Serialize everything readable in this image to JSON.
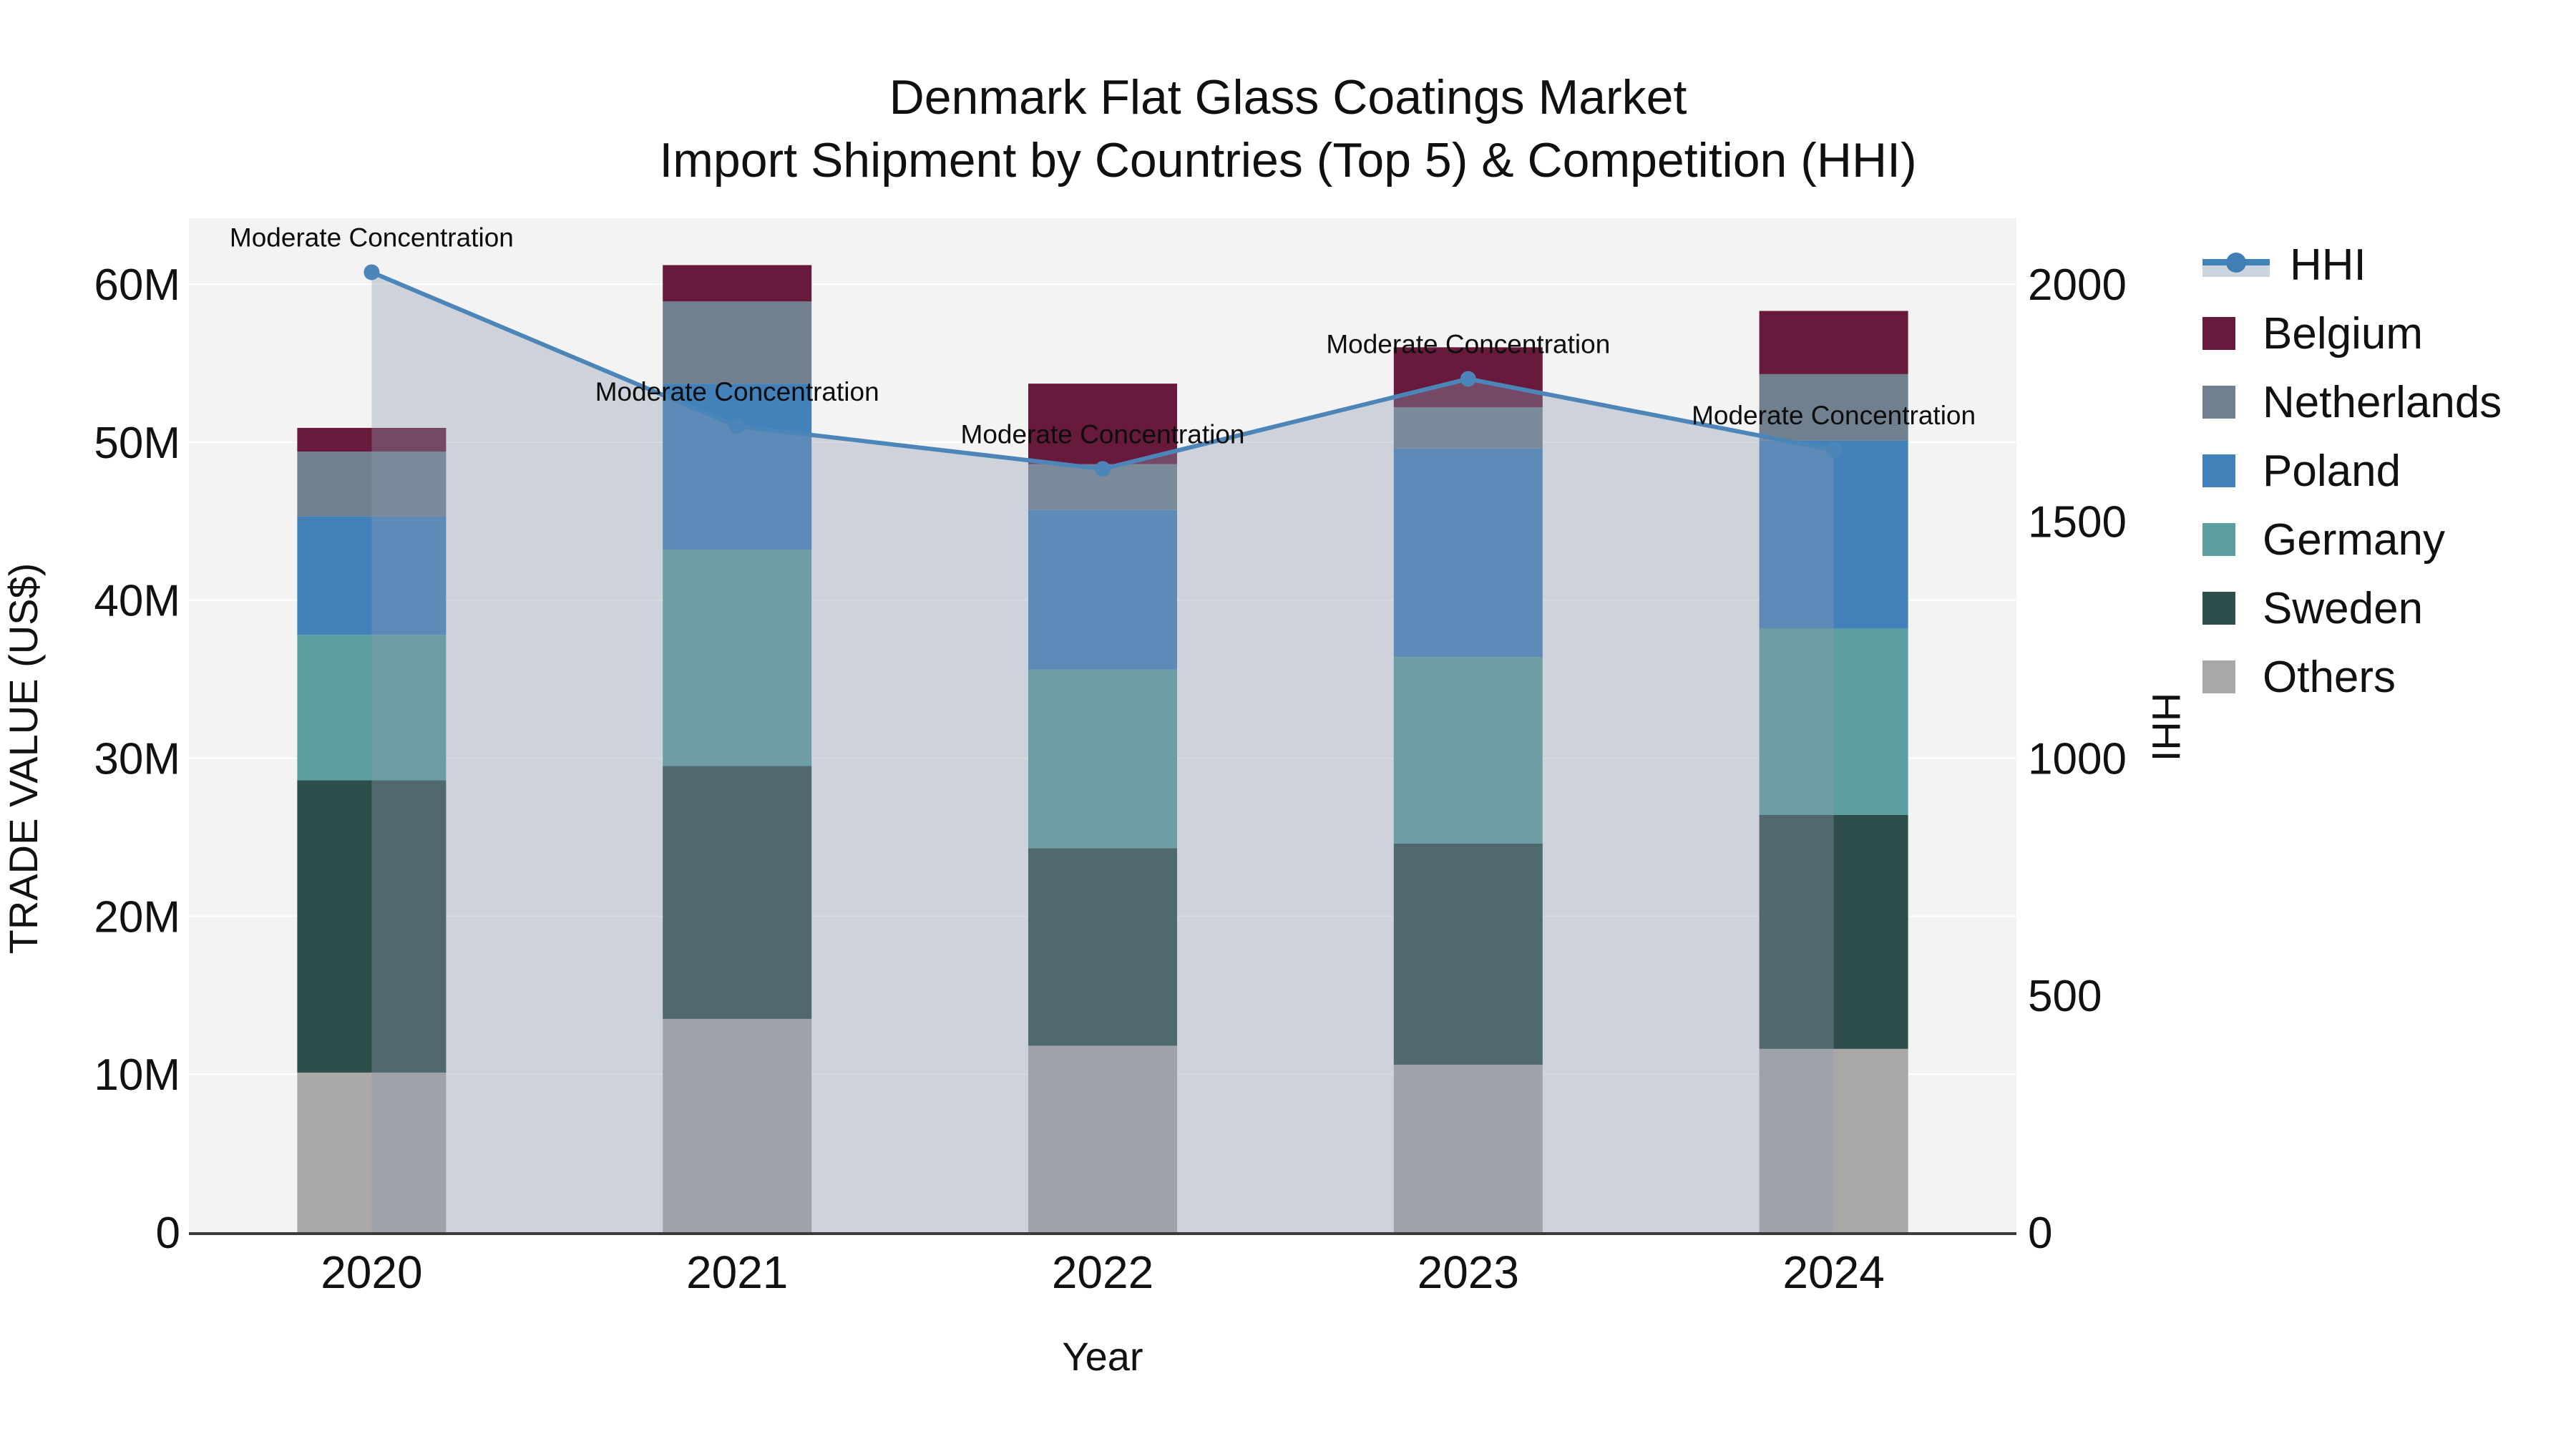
{
  "title": {
    "line1": "Denmark Flat Glass Coatings Market",
    "line2": "Import Shipment by Countries (Top 5) & Competition (HHI)"
  },
  "chart_data": {
    "type": "combo: stacked-bar + line (secondary axis)",
    "categories": [
      "2020",
      "2021",
      "2022",
      "2023",
      "2024"
    ],
    "xlabel": "Year",
    "ylabel_left": "TRADE VALUE (US$)",
    "ylabel_right": "HHI",
    "y_left_unit": "millions USD",
    "ylim_left_musd": [
      0,
      60
    ],
    "y_left_ticks": [
      "0",
      "10M",
      "20M",
      "30M",
      "40M",
      "50M",
      "60M"
    ],
    "ylim_right": [
      0,
      2000
    ],
    "y_right_ticks": [
      "0",
      "500",
      "1000",
      "1500",
      "2000"
    ],
    "grid": "horizontal only",
    "legend_position": "right",
    "series": [
      {
        "name": "Others",
        "color": "#a9a8a6",
        "values_musd": [
          10.1,
          13.5,
          11.8,
          10.6,
          11.6
        ]
      },
      {
        "name": "Sweden",
        "color": "#2e4e4c",
        "values_musd": [
          18.5,
          16.0,
          12.5,
          14.0,
          14.8
        ]
      },
      {
        "name": "Germany",
        "color": "#5d9fa0",
        "values_musd": [
          9.2,
          13.7,
          11.3,
          11.8,
          11.8
        ]
      },
      {
        "name": "Poland",
        "color": "#4381bb",
        "values_musd": [
          7.5,
          10.5,
          10.1,
          13.2,
          11.9
        ]
      },
      {
        "name": "Netherlands",
        "color": "#71808f",
        "values_musd": [
          4.1,
          5.2,
          2.9,
          2.6,
          4.2
        ]
      },
      {
        "name": "Belgium",
        "color": "#681a3d",
        "values_musd": [
          1.5,
          2.3,
          5.1,
          3.8,
          4.0
        ]
      }
    ],
    "totals_musd": [
      50.9,
      61.2,
      53.7,
      56.0,
      58.3
    ],
    "hhi": {
      "name": "HHI",
      "values": [
        2025,
        1700,
        1610,
        1800,
        1650
      ],
      "line_color": "#4c86b8",
      "area_fill": "rgba(140,154,176,0.36)",
      "annotation_text": "Moderate Concentration",
      "annotations": [
        "Moderate Concentration",
        "Moderate Concentration",
        "Moderate Concentration",
        "Moderate Concentration",
        "Moderate Concentration"
      ]
    }
  },
  "legend": {
    "items": [
      {
        "label": "HHI",
        "type": "line",
        "color": "#4284ba"
      },
      {
        "label": "Belgium",
        "type": "swatch",
        "color": "#681a3d"
      },
      {
        "label": "Netherlands",
        "type": "swatch",
        "color": "#71808f"
      },
      {
        "label": "Poland",
        "type": "swatch",
        "color": "#4381bb"
      },
      {
        "label": "Germany",
        "type": "swatch",
        "color": "#5d9fa0"
      },
      {
        "label": "Sweden",
        "type": "swatch",
        "color": "#2e4e4c"
      },
      {
        "label": "Others",
        "type": "swatch",
        "color": "#a9a8a6"
      }
    ]
  },
  "colors": {
    "plot_bg": "#f3f3f4",
    "figure_bg": "#ffffff",
    "gridline": "#ffffff",
    "axis_line": "#3a3a3a",
    "tick_text": "#111111",
    "annotation_text": "#0d0d0d"
  }
}
